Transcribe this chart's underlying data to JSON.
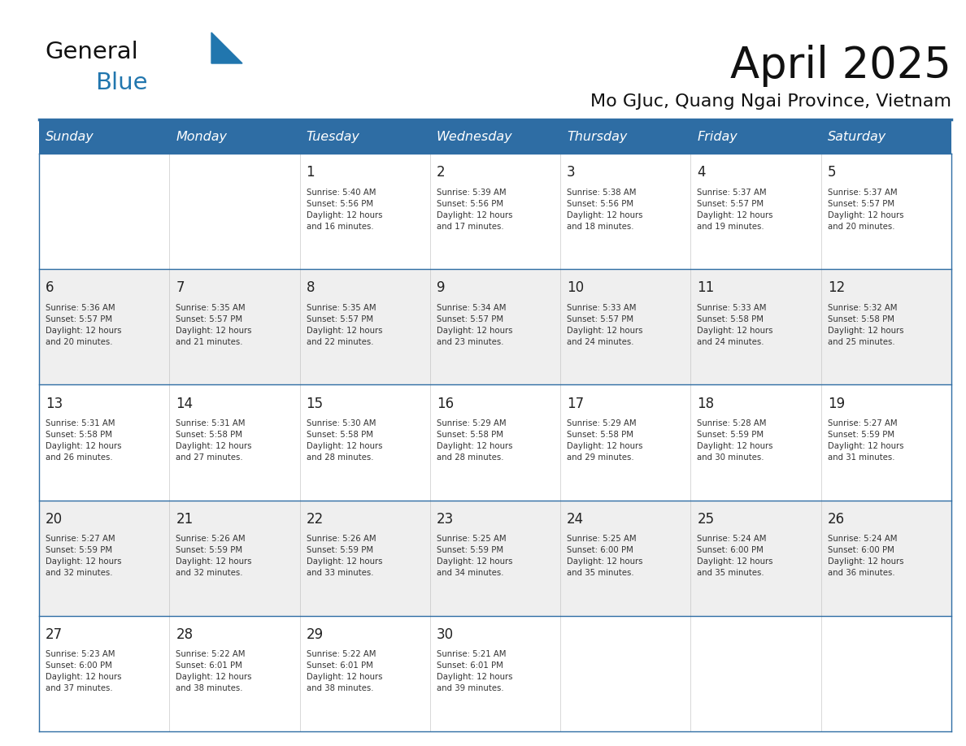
{
  "title": "April 2025",
  "subtitle": "Mo GJuc, Quang Ngai Province, Vietnam",
  "header_bg_color": "#2E6DA4",
  "header_text_color": "#FFFFFF",
  "row_bg_even": "#FFFFFF",
  "row_bg_odd": "#EFEFEF",
  "day_number_color": "#222222",
  "cell_text_color": "#333333",
  "border_color": "#2E6DA4",
  "days_of_week": [
    "Sunday",
    "Monday",
    "Tuesday",
    "Wednesday",
    "Thursday",
    "Friday",
    "Saturday"
  ],
  "weeks": [
    [
      {
        "day": 0,
        "text": ""
      },
      {
        "day": 0,
        "text": ""
      },
      {
        "day": 1,
        "text": "Sunrise: 5:40 AM\nSunset: 5:56 PM\nDaylight: 12 hours\nand 16 minutes."
      },
      {
        "day": 2,
        "text": "Sunrise: 5:39 AM\nSunset: 5:56 PM\nDaylight: 12 hours\nand 17 minutes."
      },
      {
        "day": 3,
        "text": "Sunrise: 5:38 AM\nSunset: 5:56 PM\nDaylight: 12 hours\nand 18 minutes."
      },
      {
        "day": 4,
        "text": "Sunrise: 5:37 AM\nSunset: 5:57 PM\nDaylight: 12 hours\nand 19 minutes."
      },
      {
        "day": 5,
        "text": "Sunrise: 5:37 AM\nSunset: 5:57 PM\nDaylight: 12 hours\nand 20 minutes."
      }
    ],
    [
      {
        "day": 6,
        "text": "Sunrise: 5:36 AM\nSunset: 5:57 PM\nDaylight: 12 hours\nand 20 minutes."
      },
      {
        "day": 7,
        "text": "Sunrise: 5:35 AM\nSunset: 5:57 PM\nDaylight: 12 hours\nand 21 minutes."
      },
      {
        "day": 8,
        "text": "Sunrise: 5:35 AM\nSunset: 5:57 PM\nDaylight: 12 hours\nand 22 minutes."
      },
      {
        "day": 9,
        "text": "Sunrise: 5:34 AM\nSunset: 5:57 PM\nDaylight: 12 hours\nand 23 minutes."
      },
      {
        "day": 10,
        "text": "Sunrise: 5:33 AM\nSunset: 5:57 PM\nDaylight: 12 hours\nand 24 minutes."
      },
      {
        "day": 11,
        "text": "Sunrise: 5:33 AM\nSunset: 5:58 PM\nDaylight: 12 hours\nand 24 minutes."
      },
      {
        "day": 12,
        "text": "Sunrise: 5:32 AM\nSunset: 5:58 PM\nDaylight: 12 hours\nand 25 minutes."
      }
    ],
    [
      {
        "day": 13,
        "text": "Sunrise: 5:31 AM\nSunset: 5:58 PM\nDaylight: 12 hours\nand 26 minutes."
      },
      {
        "day": 14,
        "text": "Sunrise: 5:31 AM\nSunset: 5:58 PM\nDaylight: 12 hours\nand 27 minutes."
      },
      {
        "day": 15,
        "text": "Sunrise: 5:30 AM\nSunset: 5:58 PM\nDaylight: 12 hours\nand 28 minutes."
      },
      {
        "day": 16,
        "text": "Sunrise: 5:29 AM\nSunset: 5:58 PM\nDaylight: 12 hours\nand 28 minutes."
      },
      {
        "day": 17,
        "text": "Sunrise: 5:29 AM\nSunset: 5:58 PM\nDaylight: 12 hours\nand 29 minutes."
      },
      {
        "day": 18,
        "text": "Sunrise: 5:28 AM\nSunset: 5:59 PM\nDaylight: 12 hours\nand 30 minutes."
      },
      {
        "day": 19,
        "text": "Sunrise: 5:27 AM\nSunset: 5:59 PM\nDaylight: 12 hours\nand 31 minutes."
      }
    ],
    [
      {
        "day": 20,
        "text": "Sunrise: 5:27 AM\nSunset: 5:59 PM\nDaylight: 12 hours\nand 32 minutes."
      },
      {
        "day": 21,
        "text": "Sunrise: 5:26 AM\nSunset: 5:59 PM\nDaylight: 12 hours\nand 32 minutes."
      },
      {
        "day": 22,
        "text": "Sunrise: 5:26 AM\nSunset: 5:59 PM\nDaylight: 12 hours\nand 33 minutes."
      },
      {
        "day": 23,
        "text": "Sunrise: 5:25 AM\nSunset: 5:59 PM\nDaylight: 12 hours\nand 34 minutes."
      },
      {
        "day": 24,
        "text": "Sunrise: 5:25 AM\nSunset: 6:00 PM\nDaylight: 12 hours\nand 35 minutes."
      },
      {
        "day": 25,
        "text": "Sunrise: 5:24 AM\nSunset: 6:00 PM\nDaylight: 12 hours\nand 35 minutes."
      },
      {
        "day": 26,
        "text": "Sunrise: 5:24 AM\nSunset: 6:00 PM\nDaylight: 12 hours\nand 36 minutes."
      }
    ],
    [
      {
        "day": 27,
        "text": "Sunrise: 5:23 AM\nSunset: 6:00 PM\nDaylight: 12 hours\nand 37 minutes."
      },
      {
        "day": 28,
        "text": "Sunrise: 5:22 AM\nSunset: 6:01 PM\nDaylight: 12 hours\nand 38 minutes."
      },
      {
        "day": 29,
        "text": "Sunrise: 5:22 AM\nSunset: 6:01 PM\nDaylight: 12 hours\nand 38 minutes."
      },
      {
        "day": 30,
        "text": "Sunrise: 5:21 AM\nSunset: 6:01 PM\nDaylight: 12 hours\nand 39 minutes."
      },
      {
        "day": 0,
        "text": ""
      },
      {
        "day": 0,
        "text": ""
      },
      {
        "day": 0,
        "text": ""
      }
    ]
  ],
  "logo_color_general": "#111111",
  "logo_color_blue": "#2176AE",
  "logo_triangle_color": "#2176AE",
  "title_color": "#111111",
  "subtitle_color": "#111111"
}
